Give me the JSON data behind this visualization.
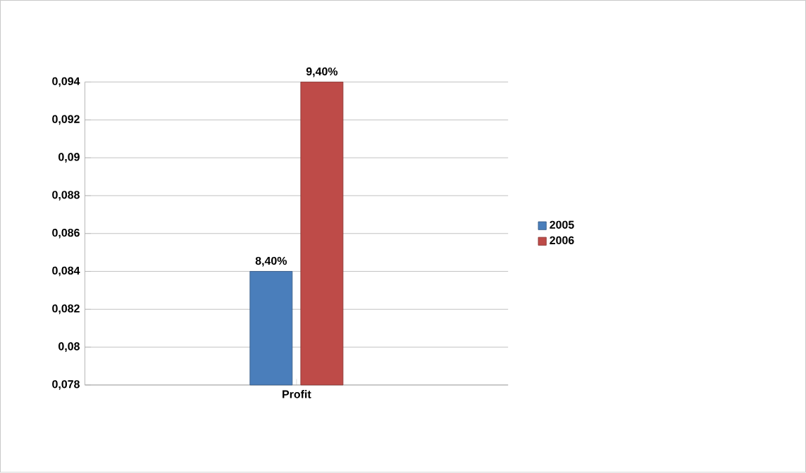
{
  "chart_data": {
    "type": "bar",
    "categories": [
      "Profit"
    ],
    "series": [
      {
        "name": "2005",
        "color": "#4a7ebb",
        "values": [
          0.084
        ],
        "value_labels": [
          "8,40%"
        ]
      },
      {
        "name": "2006",
        "color": "#be4b48",
        "values": [
          0.094
        ],
        "value_labels": [
          "9,40%"
        ]
      }
    ],
    "ylim": [
      0.078,
      0.094
    ],
    "yticks": [
      {
        "value": 0.078,
        "label": "0,078"
      },
      {
        "value": 0.08,
        "label": "0,08"
      },
      {
        "value": 0.082,
        "label": "0,082"
      },
      {
        "value": 0.084,
        "label": "0,084"
      },
      {
        "value": 0.086,
        "label": "0,086"
      },
      {
        "value": 0.088,
        "label": "0,088"
      },
      {
        "value": 0.09,
        "label": "0,09"
      },
      {
        "value": 0.092,
        "label": "0,092"
      },
      {
        "value": 0.094,
        "label": "0,094"
      }
    ],
    "grid": "y",
    "legend": "right"
  }
}
